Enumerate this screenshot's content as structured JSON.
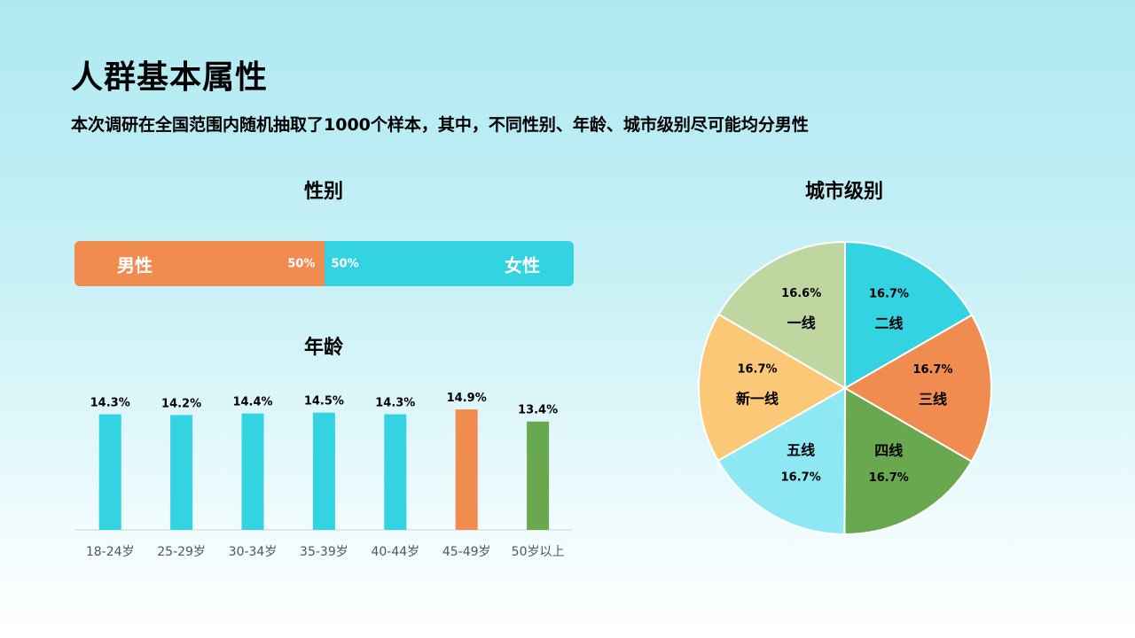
{
  "title": "人群基本属性",
  "subtitle": "本次调研在全国范围内随机抽取了1000个样本，其中，不同性别、年龄、城市级别尽可能均分男性",
  "gender": {
    "title": "性别",
    "male_label": "男性",
    "male_pct": "50%",
    "female_label": "女性",
    "female_pct": "50%",
    "male_color": "#f08c50",
    "female_color": "#33d3e2"
  },
  "age": {
    "title": "年龄"
  },
  "city": {
    "title": "城市级别"
  },
  "chart_data": [
    {
      "type": "bar",
      "title": "年龄",
      "categories": [
        "18-24岁",
        "25-29岁",
        "30-34岁",
        "35-39岁",
        "40-44岁",
        "45-49岁",
        "50岁以上"
      ],
      "values": [
        14.3,
        14.2,
        14.4,
        14.5,
        14.3,
        14.9,
        13.4
      ],
      "value_labels": [
        "14.3%",
        "14.2%",
        "14.4%",
        "14.5%",
        "14.3%",
        "14.9%",
        "13.4%"
      ],
      "colors": [
        "#33d3e2",
        "#33d3e2",
        "#33d3e2",
        "#33d3e2",
        "#33d3e2",
        "#f08c50",
        "#6aa84f"
      ],
      "ylim": [
        0,
        16
      ],
      "grid": false
    },
    {
      "type": "pie",
      "title": "城市级别",
      "slices": [
        {
          "label": "二线",
          "value": 16.7,
          "value_label": "16.7%",
          "color": "#33d3e2"
        },
        {
          "label": "三线",
          "value": 16.7,
          "value_label": "16.7%",
          "color": "#f08c50"
        },
        {
          "label": "四线",
          "value": 16.7,
          "value_label": "16.7%",
          "color": "#6aa84f"
        },
        {
          "label": "五线",
          "value": 16.7,
          "value_label": "16.7%",
          "color": "#8ee8f4"
        },
        {
          "label": "新一线",
          "value": 16.7,
          "value_label": "16.7%",
          "color": "#fbc878"
        },
        {
          "label": "一线",
          "value": 16.6,
          "value_label": "16.6%",
          "color": "#bfd6a0"
        }
      ],
      "start": "top",
      "direction": "clockwise"
    }
  ]
}
